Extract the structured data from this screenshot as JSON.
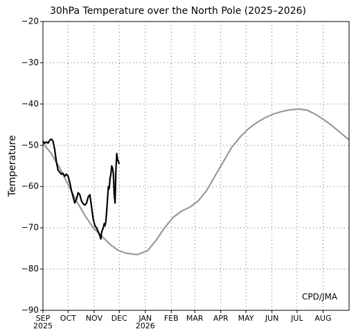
{
  "chart_data": {
    "type": "line",
    "title": "30hPa Temperature over the North Pole (2025–2026)",
    "ylabel": "Temperature",
    "annotation": "CPD/JMA",
    "xlim": [
      0,
      365
    ],
    "ylim": [
      -90,
      -20
    ],
    "yticks": [
      {
        "value": -90,
        "label": "−90"
      },
      {
        "value": -80,
        "label": "−80"
      },
      {
        "value": -70,
        "label": "−70"
      },
      {
        "value": -60,
        "label": "−60"
      },
      {
        "value": -50,
        "label": "−50"
      },
      {
        "value": -40,
        "label": "−40"
      },
      {
        "value": -30,
        "label": "−30"
      },
      {
        "value": -20,
        "label": "−20"
      }
    ],
    "xticks": [
      {
        "value": 0,
        "label": "SEP"
      },
      {
        "value": 30,
        "label": "OCT"
      },
      {
        "value": 61,
        "label": "NOV"
      },
      {
        "value": 91,
        "label": "DEC"
      },
      {
        "value": 122,
        "label": "JAN"
      },
      {
        "value": 153,
        "label": "FEB"
      },
      {
        "value": 181,
        "label": "MAR"
      },
      {
        "value": 212,
        "label": "APR"
      },
      {
        "value": 242,
        "label": "MAY"
      },
      {
        "value": 273,
        "label": "JUN"
      },
      {
        "value": 303,
        "label": "JUL"
      },
      {
        "value": 334,
        "label": "AUG"
      }
    ],
    "year_labels": [
      {
        "value": 0,
        "label": "2025"
      },
      {
        "value": 122,
        "label": "2026"
      }
    ],
    "grid": true,
    "series": [
      {
        "color": "#999999",
        "x": [
          0,
          10,
          20,
          30,
          40,
          50,
          60,
          70,
          80,
          90,
          100,
          113,
          125,
          135,
          145,
          155,
          165,
          175,
          185,
          195,
          205,
          215,
          225,
          235,
          245,
          255,
          265,
          275,
          285,
          295,
          305,
          315,
          325,
          335,
          345,
          355,
          365
        ],
        "values": [
          -49.5,
          -52,
          -55.5,
          -59.5,
          -63.5,
          -67,
          -70,
          -72,
          -74,
          -75.5,
          -76.2,
          -76.5,
          -75.5,
          -73,
          -70,
          -67.5,
          -66,
          -65,
          -63.5,
          -61,
          -57.5,
          -54,
          -50.5,
          -48,
          -46,
          -44.5,
          -43.3,
          -42.4,
          -41.8,
          -41.4,
          -41.2,
          -41.5,
          -42.5,
          -43.8,
          -45.3,
          -47,
          -48.7
        ]
      },
      {
        "color": "#000000",
        "x": [
          0,
          2,
          4,
          6,
          8,
          10,
          12,
          14,
          16,
          18,
          20,
          22,
          24,
          26,
          28,
          30,
          32,
          34,
          36,
          38,
          40,
          42,
          44,
          46,
          48,
          50,
          52,
          54,
          56,
          58,
          60,
          62,
          64,
          66,
          68,
          69,
          70,
          71,
          72,
          73,
          74,
          75,
          76,
          77,
          78,
          79,
          80,
          81,
          82,
          83,
          84,
          85,
          86,
          87,
          88,
          89,
          90,
          91
        ],
        "values": [
          -49,
          -49.5,
          -49.2,
          -49.5,
          -48.8,
          -48.5,
          -49,
          -51,
          -54,
          -56,
          -56.5,
          -57,
          -56.8,
          -57.5,
          -57,
          -57.5,
          -59,
          -61,
          -62.5,
          -64,
          -63,
          -61.5,
          -62,
          -63.5,
          -64.2,
          -64.5,
          -64,
          -62.5,
          -62,
          -65,
          -68,
          -69.5,
          -70,
          -71,
          -72,
          -72.7,
          -71,
          -70.5,
          -70,
          -69,
          -69.5,
          -68.5,
          -66,
          -63,
          -60,
          -60.5,
          -58,
          -57,
          -55,
          -55.5,
          -57,
          -62,
          -64,
          -56,
          -52,
          -53.5,
          -54,
          -54.5
        ]
      }
    ]
  }
}
